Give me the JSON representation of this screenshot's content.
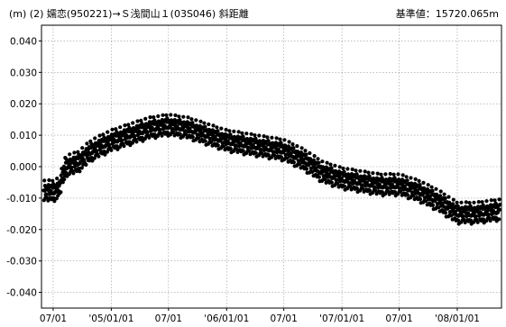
{
  "header": {
    "left": "(m) (2) 嬬恋(950221)→Ｓ浅間山１(03S046)   斜距離",
    "right": "基準値：15720.065m"
  },
  "chart_data": {
    "type": "scatter",
    "title": "(2) 嬬恋(950221)→Ｓ浅間山１(03S046)   斜距離",
    "unit": "(m)",
    "reference": "基準値：15720.065m",
    "xlabel": "",
    "ylabel": "(m)",
    "xlim": [
      "2004-05-25",
      "2008-05-20"
    ],
    "ylim": [
      -0.045,
      0.045
    ],
    "grid": true,
    "y_ticks": [
      "0.040",
      "0.030",
      "0.020",
      "0.010",
      "0.000",
      "-0.010",
      "-0.020",
      "-0.030",
      "-0.040"
    ],
    "y_tick_values": [
      0.04,
      0.03,
      0.02,
      0.01,
      0.0,
      -0.01,
      -0.02,
      -0.03,
      -0.04
    ],
    "x_ticks": [
      "07/01",
      "'05/01/01",
      "07/01",
      "'06/01/01",
      "07/01",
      "'07/01/01",
      "07/01",
      "'08/01/01"
    ],
    "x_tick_dates": [
      "2004-07-01",
      "2005-01-01",
      "2005-07-01",
      "2006-01-01",
      "2006-07-01",
      "2007-01-01",
      "2007-07-01",
      "2008-01-01"
    ],
    "marker_color": "#000000",
    "series": [
      {
        "trend": [
          {
            "x": "2004-06-01",
            "y": -0.008
          },
          {
            "x": "2004-07-01",
            "y": -0.008
          },
          {
            "x": "2004-07-20",
            "y": -0.007
          },
          {
            "x": "2004-08-10",
            "y": 0.0
          },
          {
            "x": "2004-09-15",
            "y": 0.001
          },
          {
            "x": "2004-11-01",
            "y": 0.005
          },
          {
            "x": "2005-01-01",
            "y": 0.008
          },
          {
            "x": "2005-03-01",
            "y": 0.01
          },
          {
            "x": "2005-05-01",
            "y": 0.012
          },
          {
            "x": "2005-07-01",
            "y": 0.013
          },
          {
            "x": "2005-09-01",
            "y": 0.012
          },
          {
            "x": "2005-11-01",
            "y": 0.01
          },
          {
            "x": "2006-01-01",
            "y": 0.008
          },
          {
            "x": "2006-03-01",
            "y": 0.007
          },
          {
            "x": "2006-05-01",
            "y": 0.006
          },
          {
            "x": "2006-07-01",
            "y": 0.005
          },
          {
            "x": "2006-09-01",
            "y": 0.002
          },
          {
            "x": "2006-11-01",
            "y": -0.002
          },
          {
            "x": "2007-01-01",
            "y": -0.004
          },
          {
            "x": "2007-03-01",
            "y": -0.005
          },
          {
            "x": "2007-05-01",
            "y": -0.006
          },
          {
            "x": "2007-07-01",
            "y": -0.006
          },
          {
            "x": "2007-09-01",
            "y": -0.008
          },
          {
            "x": "2007-11-01",
            "y": -0.011
          },
          {
            "x": "2008-01-01",
            "y": -0.015
          },
          {
            "x": "2008-03-01",
            "y": -0.015
          },
          {
            "x": "2008-05-15",
            "y": -0.014
          }
        ],
        "scatter_pattern": [
          0.6,
          -1.1,
          1.8,
          -0.4,
          0.9,
          -1.6,
          0.2,
          1.3,
          -0.8,
          0.5,
          -1.9,
          1.0,
          -0.2,
          1.6,
          -1.3,
          0.7,
          -0.6,
          2.0,
          -1.0,
          0.3,
          1.4,
          -1.7,
          0.8,
          -0.3,
          1.1,
          -1.4,
          0.4,
          -0.9,
          1.9,
          -0.5,
          0.1,
          1.2,
          -1.2,
          0.6,
          -2.0,
          1.5,
          -0.7,
          0.9,
          -0.1,
          1.7
        ]
      }
    ],
    "count_per_day": 1,
    "spread": 0.0016
  }
}
